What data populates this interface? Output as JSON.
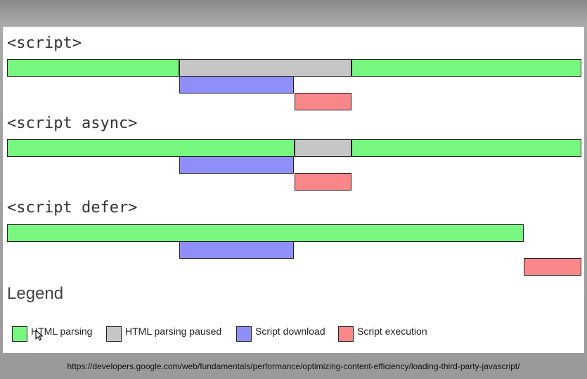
{
  "sections": [
    {
      "heading": "<script>",
      "bars": [
        {
          "kind": "parsing",
          "row": 0,
          "start": 0,
          "end": 30
        },
        {
          "kind": "paused",
          "row": 0,
          "start": 30,
          "end": 60
        },
        {
          "kind": "parsing",
          "row": 0,
          "start": 60,
          "end": 100
        },
        {
          "kind": "download",
          "row": 1,
          "start": 30,
          "end": 50
        },
        {
          "kind": "execution",
          "row": 2,
          "start": 50,
          "end": 60
        }
      ]
    },
    {
      "heading": "<script async>",
      "bars": [
        {
          "kind": "parsing",
          "row": 0,
          "start": 0,
          "end": 50
        },
        {
          "kind": "paused",
          "row": 0,
          "start": 50,
          "end": 60
        },
        {
          "kind": "parsing",
          "row": 0,
          "start": 60,
          "end": 100
        },
        {
          "kind": "download",
          "row": 1,
          "start": 30,
          "end": 50
        },
        {
          "kind": "execution",
          "row": 2,
          "start": 50,
          "end": 60
        }
      ]
    },
    {
      "heading": "<script defer>",
      "bars": [
        {
          "kind": "parsing",
          "row": 0,
          "start": 0,
          "end": 90
        },
        {
          "kind": "download",
          "row": 1,
          "start": 30,
          "end": 50
        },
        {
          "kind": "execution",
          "row": 2,
          "start": 90,
          "end": 100
        }
      ]
    }
  ],
  "legend": {
    "title": "Legend",
    "items": [
      {
        "kind": "parsing",
        "label": "HTML parsing",
        "color": "#77f77f"
      },
      {
        "kind": "paused",
        "label": "HTML parsing paused",
        "color": "#c6c6c6"
      },
      {
        "kind": "download",
        "label": "Script download",
        "color": "#8f8ff9"
      },
      {
        "kind": "execution",
        "label": "Script execution",
        "color": "#f98689"
      }
    ]
  },
  "source_url": "https://developers.google.com/web/fundamentals/performance/optimizing-content-efficiency/loading-third-party-javascript/",
  "cursor_icon": "arrow-pointer-icon"
}
